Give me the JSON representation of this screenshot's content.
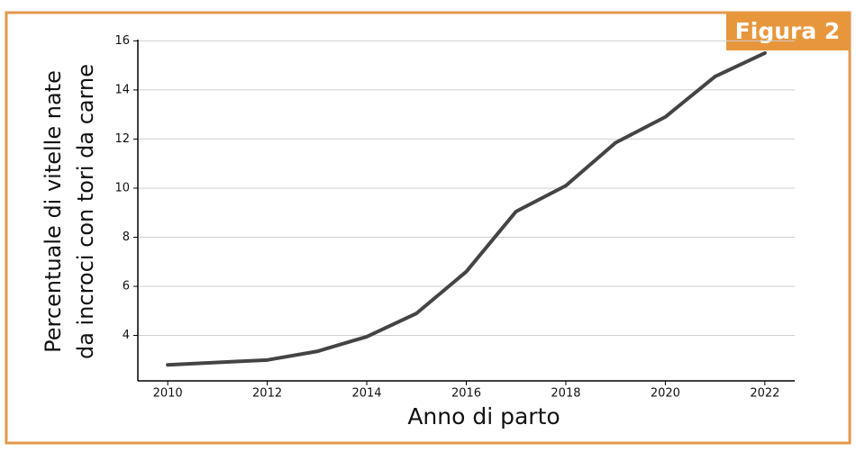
{
  "chart_data": {
    "type": "line",
    "annotation": "Figura 2",
    "xlabel": "Anno di parto",
    "ylabel": [
      "Percentuale di vitelle nate",
      "da incroci con tori da carne"
    ],
    "x": [
      2010,
      2011,
      2012,
      2013,
      2014,
      2015,
      2016,
      2017,
      2018,
      2019,
      2020,
      2021,
      2022
    ],
    "series": [
      {
        "color": "#444444",
        "values": [
          2.8,
          2.9,
          3.0,
          3.35,
          3.95,
          4.9,
          6.6,
          9.05,
          10.1,
          11.85,
          12.9,
          14.55,
          15.5
        ]
      }
    ],
    "xlim": [
      2009.4,
      2022.6
    ],
    "xticks": [
      2010,
      2012,
      2014,
      2016,
      2018,
      2020,
      2022
    ],
    "ylim": [
      2.15,
      16.05
    ],
    "yticks": [
      4,
      6,
      8,
      10,
      12,
      14,
      16
    ],
    "grid": true
  }
}
